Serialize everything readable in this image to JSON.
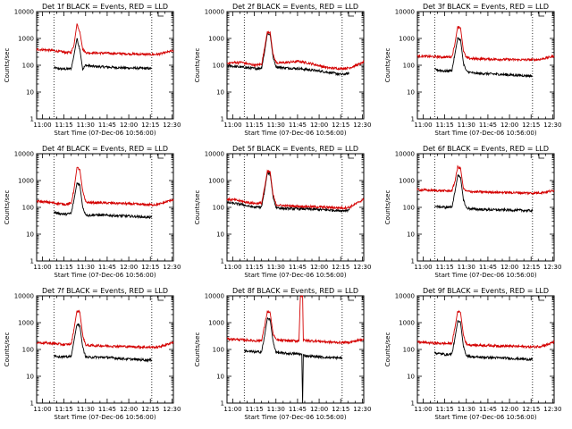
{
  "chart_data": [
    {
      "type": "line",
      "title": "Det 1f BLACK = Events, RED = LLD",
      "xlabel": "Start Time (07-Dec-06 10:56:00)",
      "ylabel": "Counts/sec",
      "ylog": true,
      "ylim": [
        1,
        10000
      ],
      "xlim_minutes": [
        0,
        95
      ],
      "x_tick_labels": [
        "11:00",
        "11:15",
        "11:30",
        "11:45",
        "12:00",
        "12:15",
        "12:30"
      ],
      "y_tick_labels": [
        "1",
        "10",
        "100",
        "1000",
        "10000"
      ],
      "vlines_minutes": [
        12,
        80
      ],
      "series": [
        {
          "color": "#000000",
          "x": [
            12,
            15,
            20,
            24,
            26,
            28,
            30,
            32,
            34,
            36,
            40,
            50,
            60,
            70,
            80
          ],
          "y": [
            80,
            75,
            72,
            75,
            250,
            1000,
            400,
            70,
            100,
            95,
            90,
            85,
            80,
            78,
            75
          ]
        },
        {
          "color": "#d40000",
          "x": [
            0,
            5,
            10,
            15,
            20,
            24,
            26,
            28,
            30,
            32,
            34,
            36,
            40,
            50,
            60,
            70,
            80,
            85,
            90,
            95
          ],
          "y": [
            390,
            380,
            360,
            330,
            300,
            300,
            600,
            3500,
            1800,
            400,
            300,
            290,
            290,
            280,
            270,
            260,
            250,
            260,
            300,
            350
          ]
        }
      ]
    },
    {
      "type": "line",
      "title": "Det 2f BLACK = Events, RED = LLD",
      "xlabel": "Start Time (07-Dec-06 10:56:00)",
      "ylabel": "Counts/sec",
      "ylog": true,
      "ylim": [
        1,
        10000
      ],
      "xlim_minutes": [
        0,
        95
      ],
      "x_tick_labels": [
        "11:00",
        "11:15",
        "11:30",
        "11:45",
        "12:00",
        "12:15",
        "12:30"
      ],
      "y_tick_labels": [
        "1",
        "10",
        "100",
        "1000",
        "10000"
      ],
      "vlines_minutes": [
        12,
        80
      ],
      "series": [
        {
          "color": "#000000",
          "x": [
            0,
            5,
            10,
            15,
            20,
            24,
            26,
            28,
            30,
            32,
            34,
            36,
            40,
            50,
            60,
            70,
            80,
            85
          ],
          "y": [
            100,
            90,
            85,
            80,
            75,
            80,
            300,
            1500,
            1400,
            200,
            90,
            85,
            80,
            75,
            65,
            55,
            45,
            50
          ]
        },
        {
          "color": "#d40000",
          "x": [
            0,
            5,
            10,
            15,
            20,
            24,
            26,
            28,
            30,
            32,
            34,
            36,
            40,
            50,
            60,
            70,
            80,
            85,
            90,
            95
          ],
          "y": [
            120,
            125,
            130,
            110,
            100,
            110,
            400,
            1800,
            1700,
            250,
            130,
            120,
            125,
            140,
            110,
            80,
            75,
            80,
            100,
            130
          ]
        }
      ]
    },
    {
      "type": "line",
      "title": "Det 3f BLACK = Events, RED = LLD",
      "xlabel": "Start Time (07-Dec-06 10:56:00)",
      "ylabel": "Counts/sec",
      "ylog": true,
      "ylim": [
        1,
        10000
      ],
      "xlim_minutes": [
        0,
        95
      ],
      "x_tick_labels": [
        "11:00",
        "11:15",
        "11:30",
        "11:45",
        "12:00",
        "12:15",
        "12:30"
      ],
      "y_tick_labels": [
        "1",
        "10",
        "100",
        "1000",
        "10000"
      ],
      "vlines_minutes": [
        12,
        80
      ],
      "series": [
        {
          "color": "#000000",
          "x": [
            12,
            15,
            20,
            24,
            26,
            28,
            30,
            32,
            34,
            36,
            40,
            50,
            60,
            70,
            80
          ],
          "y": [
            70,
            65,
            60,
            65,
            250,
            1000,
            900,
            120,
            60,
            55,
            50,
            48,
            45,
            42,
            40
          ]
        },
        {
          "color": "#d40000",
          "x": [
            0,
            5,
            10,
            15,
            20,
            24,
            26,
            28,
            30,
            32,
            34,
            36,
            40,
            50,
            60,
            70,
            80,
            85,
            90,
            95
          ],
          "y": [
            220,
            215,
            210,
            205,
            200,
            210,
            600,
            2800,
            2500,
            350,
            190,
            180,
            175,
            170,
            165,
            160,
            160,
            165,
            190,
            220
          ]
        }
      ]
    },
    {
      "type": "line",
      "title": "Det 4f BLACK = Events, RED = LLD",
      "xlabel": "Start Time (07-Dec-06 10:56:00)",
      "ylabel": "Counts/sec",
      "ylog": true,
      "ylim": [
        1,
        10000
      ],
      "xlim_minutes": [
        0,
        95
      ],
      "x_tick_labels": [
        "11:00",
        "11:15",
        "11:30",
        "11:45",
        "12:00",
        "12:15",
        "12:30"
      ],
      "y_tick_labels": [
        "1",
        "10",
        "100",
        "1000",
        "10000"
      ],
      "vlines_minutes": [
        12,
        80
      ],
      "series": [
        {
          "color": "#000000",
          "x": [
            12,
            15,
            20,
            24,
            26,
            28,
            30,
            32,
            34,
            36,
            40,
            50,
            60,
            70,
            80
          ],
          "y": [
            65,
            60,
            55,
            60,
            200,
            800,
            700,
            100,
            55,
            50,
            52,
            50,
            48,
            45,
            42
          ]
        },
        {
          "color": "#d40000",
          "x": [
            0,
            5,
            10,
            15,
            20,
            24,
            26,
            28,
            30,
            32,
            34,
            36,
            40,
            50,
            60,
            70,
            80,
            85,
            90,
            95
          ],
          "y": [
            170,
            160,
            150,
            140,
            130,
            140,
            500,
            3000,
            2600,
            400,
            160,
            150,
            150,
            145,
            140,
            130,
            125,
            130,
            160,
            200
          ]
        }
      ]
    },
    {
      "type": "line",
      "title": "Det 5f BLACK = Events, RED = LLD",
      "xlabel": "Start Time (07-Dec-06 10:56:00)",
      "ylabel": "Counts/sec",
      "ylog": true,
      "ylim": [
        1,
        10000
      ],
      "xlim_minutes": [
        0,
        95
      ],
      "x_tick_labels": [
        "11:00",
        "11:15",
        "11:30",
        "11:45",
        "12:00",
        "12:15",
        "12:30"
      ],
      "y_tick_labels": [
        "1",
        "10",
        "100",
        "1000",
        "10000"
      ],
      "vlines_minutes": [
        12,
        80
      ],
      "series": [
        {
          "color": "#000000",
          "x": [
            0,
            5,
            10,
            15,
            20,
            24,
            26,
            28,
            30,
            32,
            34,
            36,
            40,
            50,
            60,
            70,
            80,
            85
          ],
          "y": [
            150,
            140,
            130,
            110,
            100,
            105,
            400,
            1900,
            1800,
            250,
            100,
            95,
            90,
            88,
            85,
            80,
            75,
            80
          ]
        },
        {
          "color": "#d40000",
          "x": [
            0,
            5,
            10,
            15,
            20,
            24,
            26,
            28,
            30,
            32,
            34,
            36,
            40,
            50,
            60,
            70,
            80,
            85,
            90,
            95
          ],
          "y": [
            200,
            190,
            170,
            150,
            140,
            145,
            500,
            2200,
            2100,
            300,
            130,
            120,
            115,
            110,
            105,
            100,
            95,
            100,
            140,
            200
          ]
        }
      ]
    },
    {
      "type": "line",
      "title": "Det 6f BLACK = Events, RED = LLD",
      "xlabel": "Start Time (07-Dec-06 10:56:00)",
      "ylabel": "Counts/sec",
      "ylog": true,
      "ylim": [
        1,
        10000
      ],
      "xlim_minutes": [
        0,
        95
      ],
      "x_tick_labels": [
        "11:00",
        "11:15",
        "11:30",
        "11:45",
        "12:00",
        "12:15",
        "12:30"
      ],
      "y_tick_labels": [
        "1",
        "10",
        "100",
        "1000",
        "10000"
      ],
      "vlines_minutes": [
        12,
        80
      ],
      "series": [
        {
          "color": "#000000",
          "x": [
            12,
            15,
            20,
            24,
            26,
            28,
            30,
            32,
            34,
            36,
            40,
            50,
            60,
            70,
            80
          ],
          "y": [
            110,
            105,
            100,
            105,
            350,
            1500,
            1300,
            200,
            95,
            90,
            85,
            82,
            80,
            78,
            75
          ]
        },
        {
          "color": "#d40000",
          "x": [
            0,
            5,
            10,
            15,
            20,
            24,
            26,
            28,
            30,
            32,
            34,
            36,
            40,
            50,
            60,
            70,
            80,
            85,
            90,
            95
          ],
          "y": [
            450,
            440,
            430,
            420,
            410,
            420,
            900,
            3200,
            2900,
            500,
            400,
            390,
            380,
            370,
            360,
            350,
            340,
            350,
            380,
            420
          ]
        }
      ]
    },
    {
      "type": "line",
      "title": "Det 7f BLACK = Events, RED = LLD",
      "xlabel": "Start Time (07-Dec-06 10:56:00)",
      "ylabel": "Counts/sec",
      "ylog": true,
      "ylim": [
        1,
        10000
      ],
      "xlim_minutes": [
        0,
        95
      ],
      "x_tick_labels": [
        "11:00",
        "11:15",
        "11:30",
        "11:45",
        "12:00",
        "12:15",
        "12:30"
      ],
      "y_tick_labels": [
        "1",
        "10",
        "100",
        "1000",
        "10000"
      ],
      "vlines_minutes": [
        12,
        80
      ],
      "series": [
        {
          "color": "#000000",
          "x": [
            12,
            15,
            20,
            24,
            26,
            28,
            30,
            32,
            34,
            36,
            40,
            50,
            60,
            70,
            80
          ],
          "y": [
            60,
            55,
            52,
            55,
            220,
            900,
            800,
            120,
            55,
            50,
            52,
            50,
            45,
            42,
            40
          ]
        },
        {
          "color": "#d40000",
          "x": [
            0,
            5,
            10,
            15,
            20,
            24,
            26,
            28,
            30,
            32,
            34,
            36,
            40,
            50,
            60,
            70,
            80,
            85,
            90,
            95
          ],
          "y": [
            180,
            175,
            170,
            160,
            150,
            160,
            600,
            2800,
            2500,
            350,
            150,
            140,
            140,
            135,
            130,
            125,
            120,
            125,
            150,
            190
          ]
        }
      ]
    },
    {
      "type": "line",
      "title": "Det 8f BLACK = Events, RED = LLD",
      "xlabel": "Start Time (07-Dec-06 10:56:00)",
      "ylabel": "Counts/sec",
      "ylog": true,
      "ylim": [
        1,
        10000
      ],
      "xlim_minutes": [
        0,
        95
      ],
      "x_tick_labels": [
        "11:00",
        "11:15",
        "11:30",
        "11:45",
        "12:00",
        "12:15",
        "12:30"
      ],
      "y_tick_labels": [
        "1",
        "10",
        "100",
        "1000",
        "10000"
      ],
      "vlines_minutes": [
        12,
        80
      ],
      "series": [
        {
          "color": "#000000",
          "x": [
            12,
            15,
            20,
            24,
            26,
            28,
            30,
            32,
            34,
            36,
            40,
            45,
            50,
            52,
            52.5,
            53,
            55,
            60,
            70,
            80
          ],
          "y": [
            90,
            85,
            80,
            82,
            300,
            1400,
            1300,
            200,
            80,
            75,
            72,
            70,
            68,
            66,
            1,
            60,
            58,
            55,
            50,
            48
          ]
        },
        {
          "color": "#d40000",
          "x": [
            0,
            5,
            10,
            15,
            20,
            24,
            26,
            28,
            30,
            32,
            34,
            36,
            40,
            45,
            50,
            51,
            52,
            52.5,
            53,
            55,
            60,
            70,
            80,
            85,
            90,
            95
          ],
          "y": [
            250,
            240,
            230,
            220,
            210,
            220,
            700,
            2600,
            2300,
            400,
            230,
            220,
            215,
            210,
            210,
            10000,
            10000,
            10000,
            220,
            215,
            210,
            190,
            180,
            185,
            210,
            250
          ]
        }
      ]
    },
    {
      "type": "line",
      "title": "Det 9f BLACK = Events, RED = LLD",
      "xlabel": "Start Time (07-Dec-06 10:56:00)",
      "ylabel": "Counts/sec",
      "ylog": true,
      "ylim": [
        1,
        10000
      ],
      "xlim_minutes": [
        0,
        95
      ],
      "x_tick_labels": [
        "11:00",
        "11:15",
        "11:30",
        "11:45",
        "12:00",
        "12:15",
        "12:30"
      ],
      "y_tick_labels": [
        "1",
        "10",
        "100",
        "1000",
        "10000"
      ],
      "vlines_minutes": [
        12,
        80
      ],
      "series": [
        {
          "color": "#000000",
          "x": [
            12,
            15,
            20,
            24,
            26,
            28,
            30,
            32,
            34,
            36,
            40,
            50,
            60,
            70,
            80
          ],
          "y": [
            75,
            70,
            65,
            68,
            250,
            1100,
            1000,
            130,
            60,
            55,
            52,
            50,
            48,
            45,
            42
          ]
        },
        {
          "color": "#d40000",
          "x": [
            0,
            5,
            10,
            15,
            20,
            24,
            26,
            28,
            30,
            32,
            34,
            36,
            40,
            50,
            60,
            70,
            80,
            85,
            90,
            95
          ],
          "y": [
            190,
            180,
            175,
            170,
            165,
            170,
            600,
            2700,
            2400,
            350,
            160,
            150,
            145,
            140,
            135,
            130,
            125,
            130,
            150,
            190
          ]
        }
      ]
    }
  ]
}
